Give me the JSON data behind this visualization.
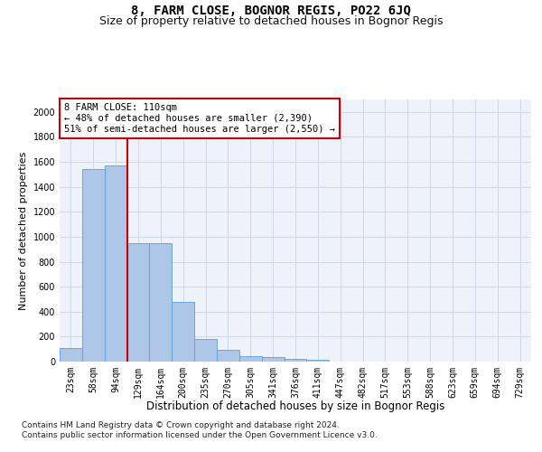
{
  "title": "8, FARM CLOSE, BOGNOR REGIS, PO22 6JQ",
  "subtitle": "Size of property relative to detached houses in Bognor Regis",
  "xlabel": "Distribution of detached houses by size in Bognor Regis",
  "ylabel": "Number of detached properties",
  "bar_values": [
    110,
    1540,
    1575,
    950,
    950,
    480,
    180,
    95,
    45,
    35,
    25,
    15,
    0,
    0,
    0,
    0,
    0,
    0,
    0,
    0,
    0
  ],
  "categories": [
    "23sqm",
    "58sqm",
    "94sqm",
    "129sqm",
    "164sqm",
    "200sqm",
    "235sqm",
    "270sqm",
    "305sqm",
    "341sqm",
    "376sqm",
    "411sqm",
    "447sqm",
    "482sqm",
    "517sqm",
    "553sqm",
    "588sqm",
    "623sqm",
    "659sqm",
    "694sqm",
    "729sqm"
  ],
  "bar_color": "#aec6e8",
  "bar_edgecolor": "#5a9fd4",
  "vline_color": "#cc0000",
  "annotation_box_text": "8 FARM CLOSE: 110sqm\n← 48% of detached houses are smaller (2,390)\n51% of semi-detached houses are larger (2,550) →",
  "annotation_box_color": "#cc0000",
  "ylim": [
    0,
    2100
  ],
  "yticks": [
    0,
    200,
    400,
    600,
    800,
    1000,
    1200,
    1400,
    1600,
    1800,
    2000
  ],
  "grid_color": "#d0d8e8",
  "background_color": "#eef2fa",
  "footer_line1": "Contains HM Land Registry data © Crown copyright and database right 2024.",
  "footer_line2": "Contains public sector information licensed under the Open Government Licence v3.0.",
  "title_fontsize": 10,
  "subtitle_fontsize": 9,
  "xlabel_fontsize": 8.5,
  "ylabel_fontsize": 8,
  "tick_fontsize": 7,
  "annotation_fontsize": 7.5,
  "footer_fontsize": 6.5
}
